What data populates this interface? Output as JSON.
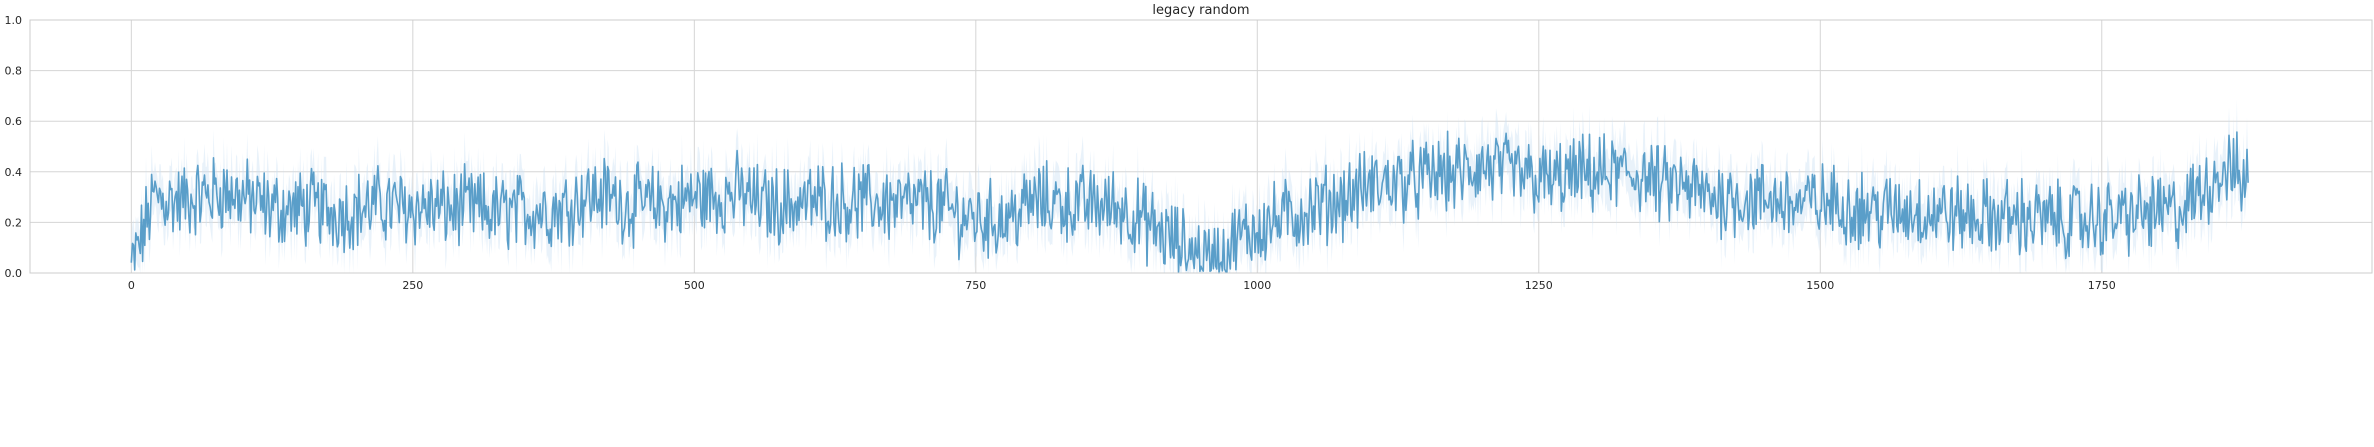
{
  "chart_data": {
    "type": "line",
    "title": "legacy random",
    "xlabel": "",
    "ylabel": "",
    "xlim": [
      -90,
      1990
    ],
    "ylim": [
      0.0,
      1.0
    ],
    "xticks": [
      0,
      250,
      500,
      750,
      1000,
      1250,
      1500,
      1750
    ],
    "yticks": [
      0.0,
      0.2,
      0.4,
      0.6,
      0.8,
      1.0
    ],
    "xtick_labels": [
      "0",
      "250",
      "500",
      "750",
      "1000",
      "1250",
      "1500",
      "1750"
    ],
    "ytick_labels": [
      "0.0",
      "0.2",
      "0.4",
      "0.6",
      "0.8",
      "1.0"
    ],
    "grid": true,
    "colors": {
      "line": "#5a9ec9",
      "band": "#cfe2f3",
      "grid": "#d5d5d5",
      "axes_edge": "#cccccc"
    },
    "series": [
      {
        "x": [
          0,
          10,
          20,
          40,
          60,
          80,
          100,
          120,
          140,
          160,
          180,
          200,
          220,
          240,
          260,
          280,
          300,
          320,
          340,
          360,
          380,
          400,
          420,
          440,
          460,
          480,
          500,
          520,
          540,
          560,
          580,
          600,
          620,
          640,
          660,
          680,
          700,
          720,
          740,
          760,
          780,
          800,
          820,
          840,
          860,
          880,
          900,
          920,
          940,
          960,
          980,
          1000,
          1020,
          1040,
          1060,
          1080,
          1100,
          1120,
          1140,
          1160,
          1180,
          1200,
          1220,
          1240,
          1260,
          1280,
          1300,
          1320,
          1340,
          1360,
          1380,
          1400,
          1420,
          1440,
          1460,
          1480,
          1500,
          1520,
          1540,
          1560,
          1580,
          1600,
          1620,
          1640,
          1660,
          1680,
          1700,
          1720,
          1740,
          1760,
          1780,
          1800,
          1820,
          1840,
          1860,
          1880
        ],
        "values": [
          0.02,
          0.15,
          0.3,
          0.28,
          0.3,
          0.32,
          0.3,
          0.26,
          0.25,
          0.26,
          0.24,
          0.25,
          0.27,
          0.26,
          0.26,
          0.25,
          0.26,
          0.24,
          0.24,
          0.25,
          0.25,
          0.3,
          0.31,
          0.27,
          0.27,
          0.27,
          0.3,
          0.3,
          0.32,
          0.27,
          0.27,
          0.28,
          0.29,
          0.28,
          0.28,
          0.27,
          0.27,
          0.26,
          0.22,
          0.21,
          0.22,
          0.28,
          0.28,
          0.27,
          0.27,
          0.26,
          0.2,
          0.14,
          0.09,
          0.05,
          0.12,
          0.18,
          0.21,
          0.24,
          0.27,
          0.3,
          0.34,
          0.36,
          0.36,
          0.39,
          0.39,
          0.42,
          0.4,
          0.38,
          0.36,
          0.38,
          0.39,
          0.39,
          0.39,
          0.34,
          0.34,
          0.3,
          0.3,
          0.29,
          0.29,
          0.27,
          0.28,
          0.27,
          0.25,
          0.24,
          0.25,
          0.24,
          0.23,
          0.22,
          0.22,
          0.22,
          0.21,
          0.21,
          0.21,
          0.22,
          0.23,
          0.24,
          0.24,
          0.33,
          0.42,
          0.36
        ],
        "spread": 0.1
      }
    ]
  }
}
